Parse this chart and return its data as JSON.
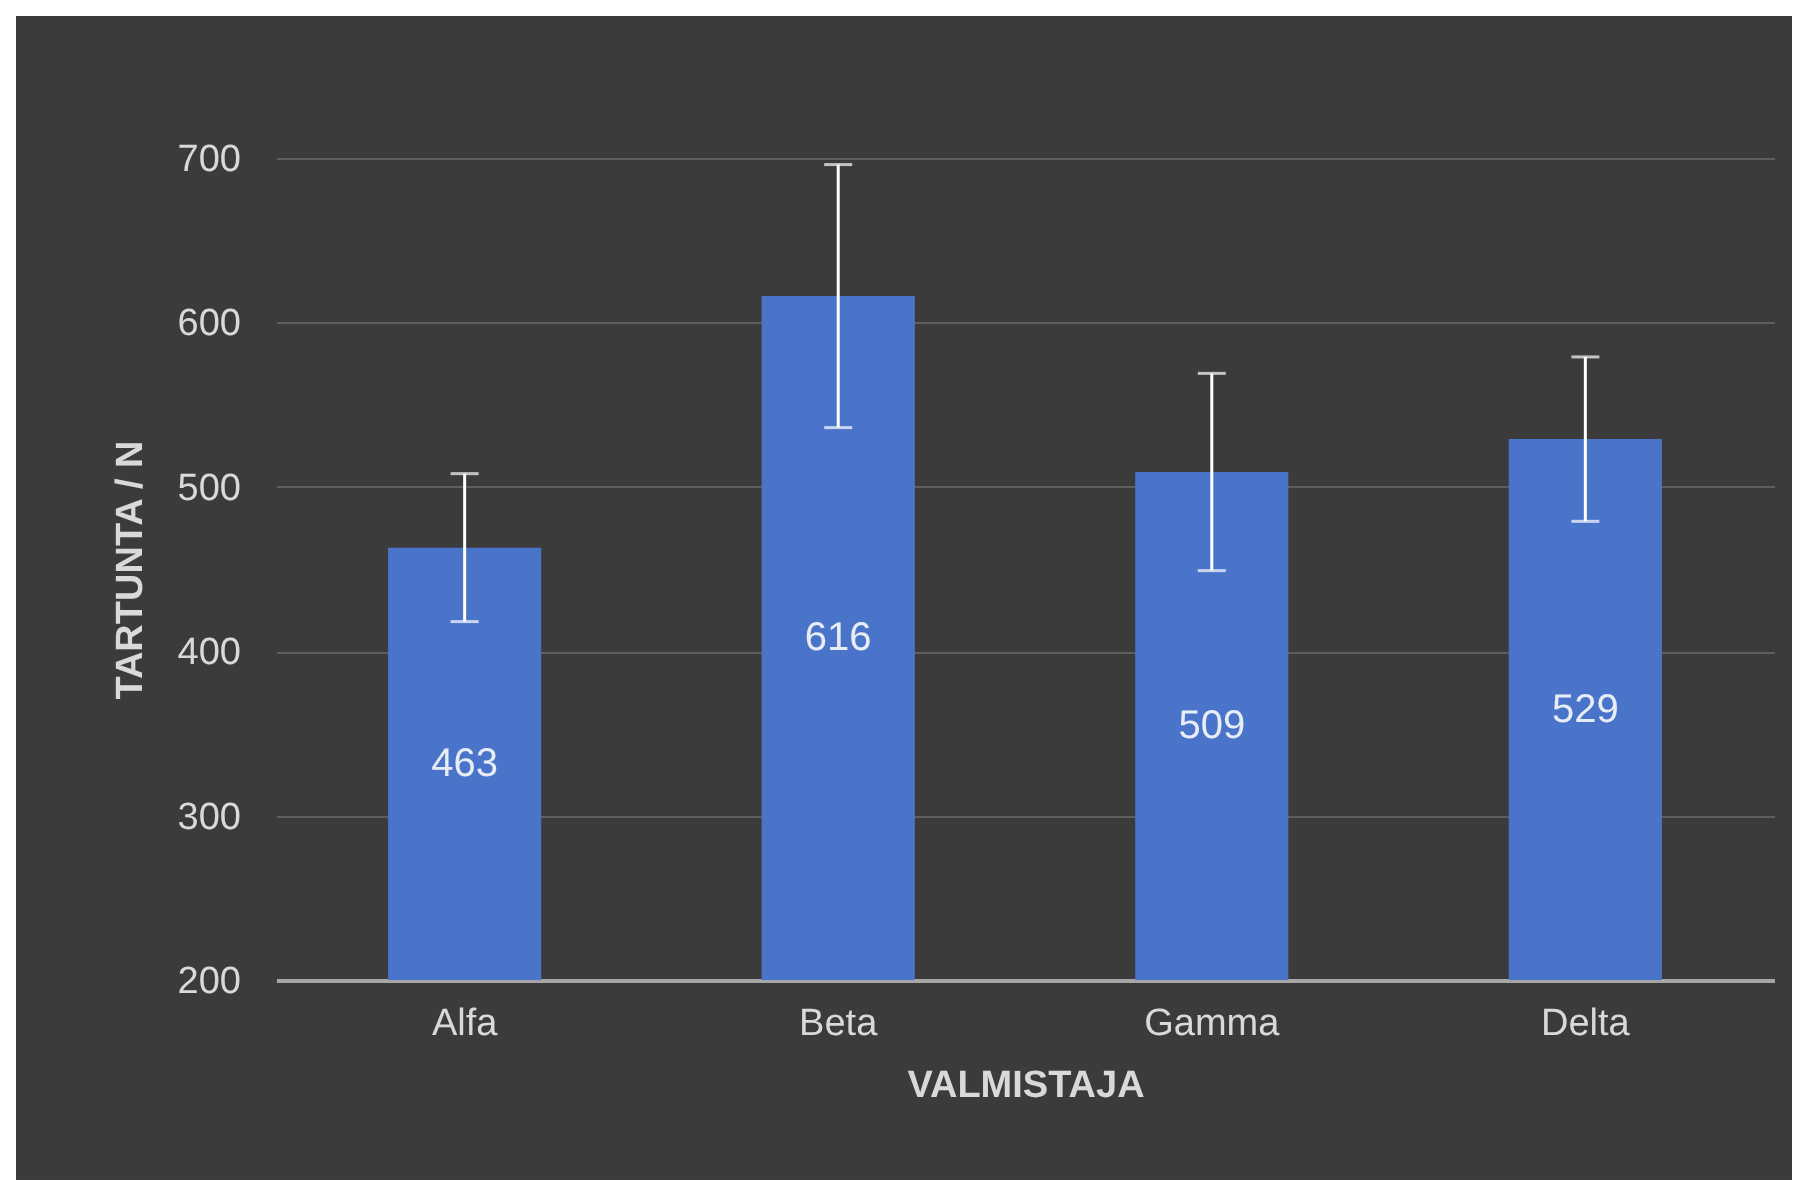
{
  "chart_data": {
    "type": "bar",
    "xlabel": "VALMISTAJA",
    "ylabel": "TARTUNTA / N",
    "categories": [
      "Alfa",
      "Beta",
      "Gamma",
      "Delta"
    ],
    "values": [
      463,
      616,
      509,
      529
    ],
    "errors": [
      45,
      80,
      60,
      50
    ],
    "color": "#4a74c9",
    "ylim": [
      200,
      700
    ],
    "yticks": [
      200,
      300,
      400,
      500,
      600,
      700
    ],
    "grid": "y",
    "data_labels": true
  }
}
